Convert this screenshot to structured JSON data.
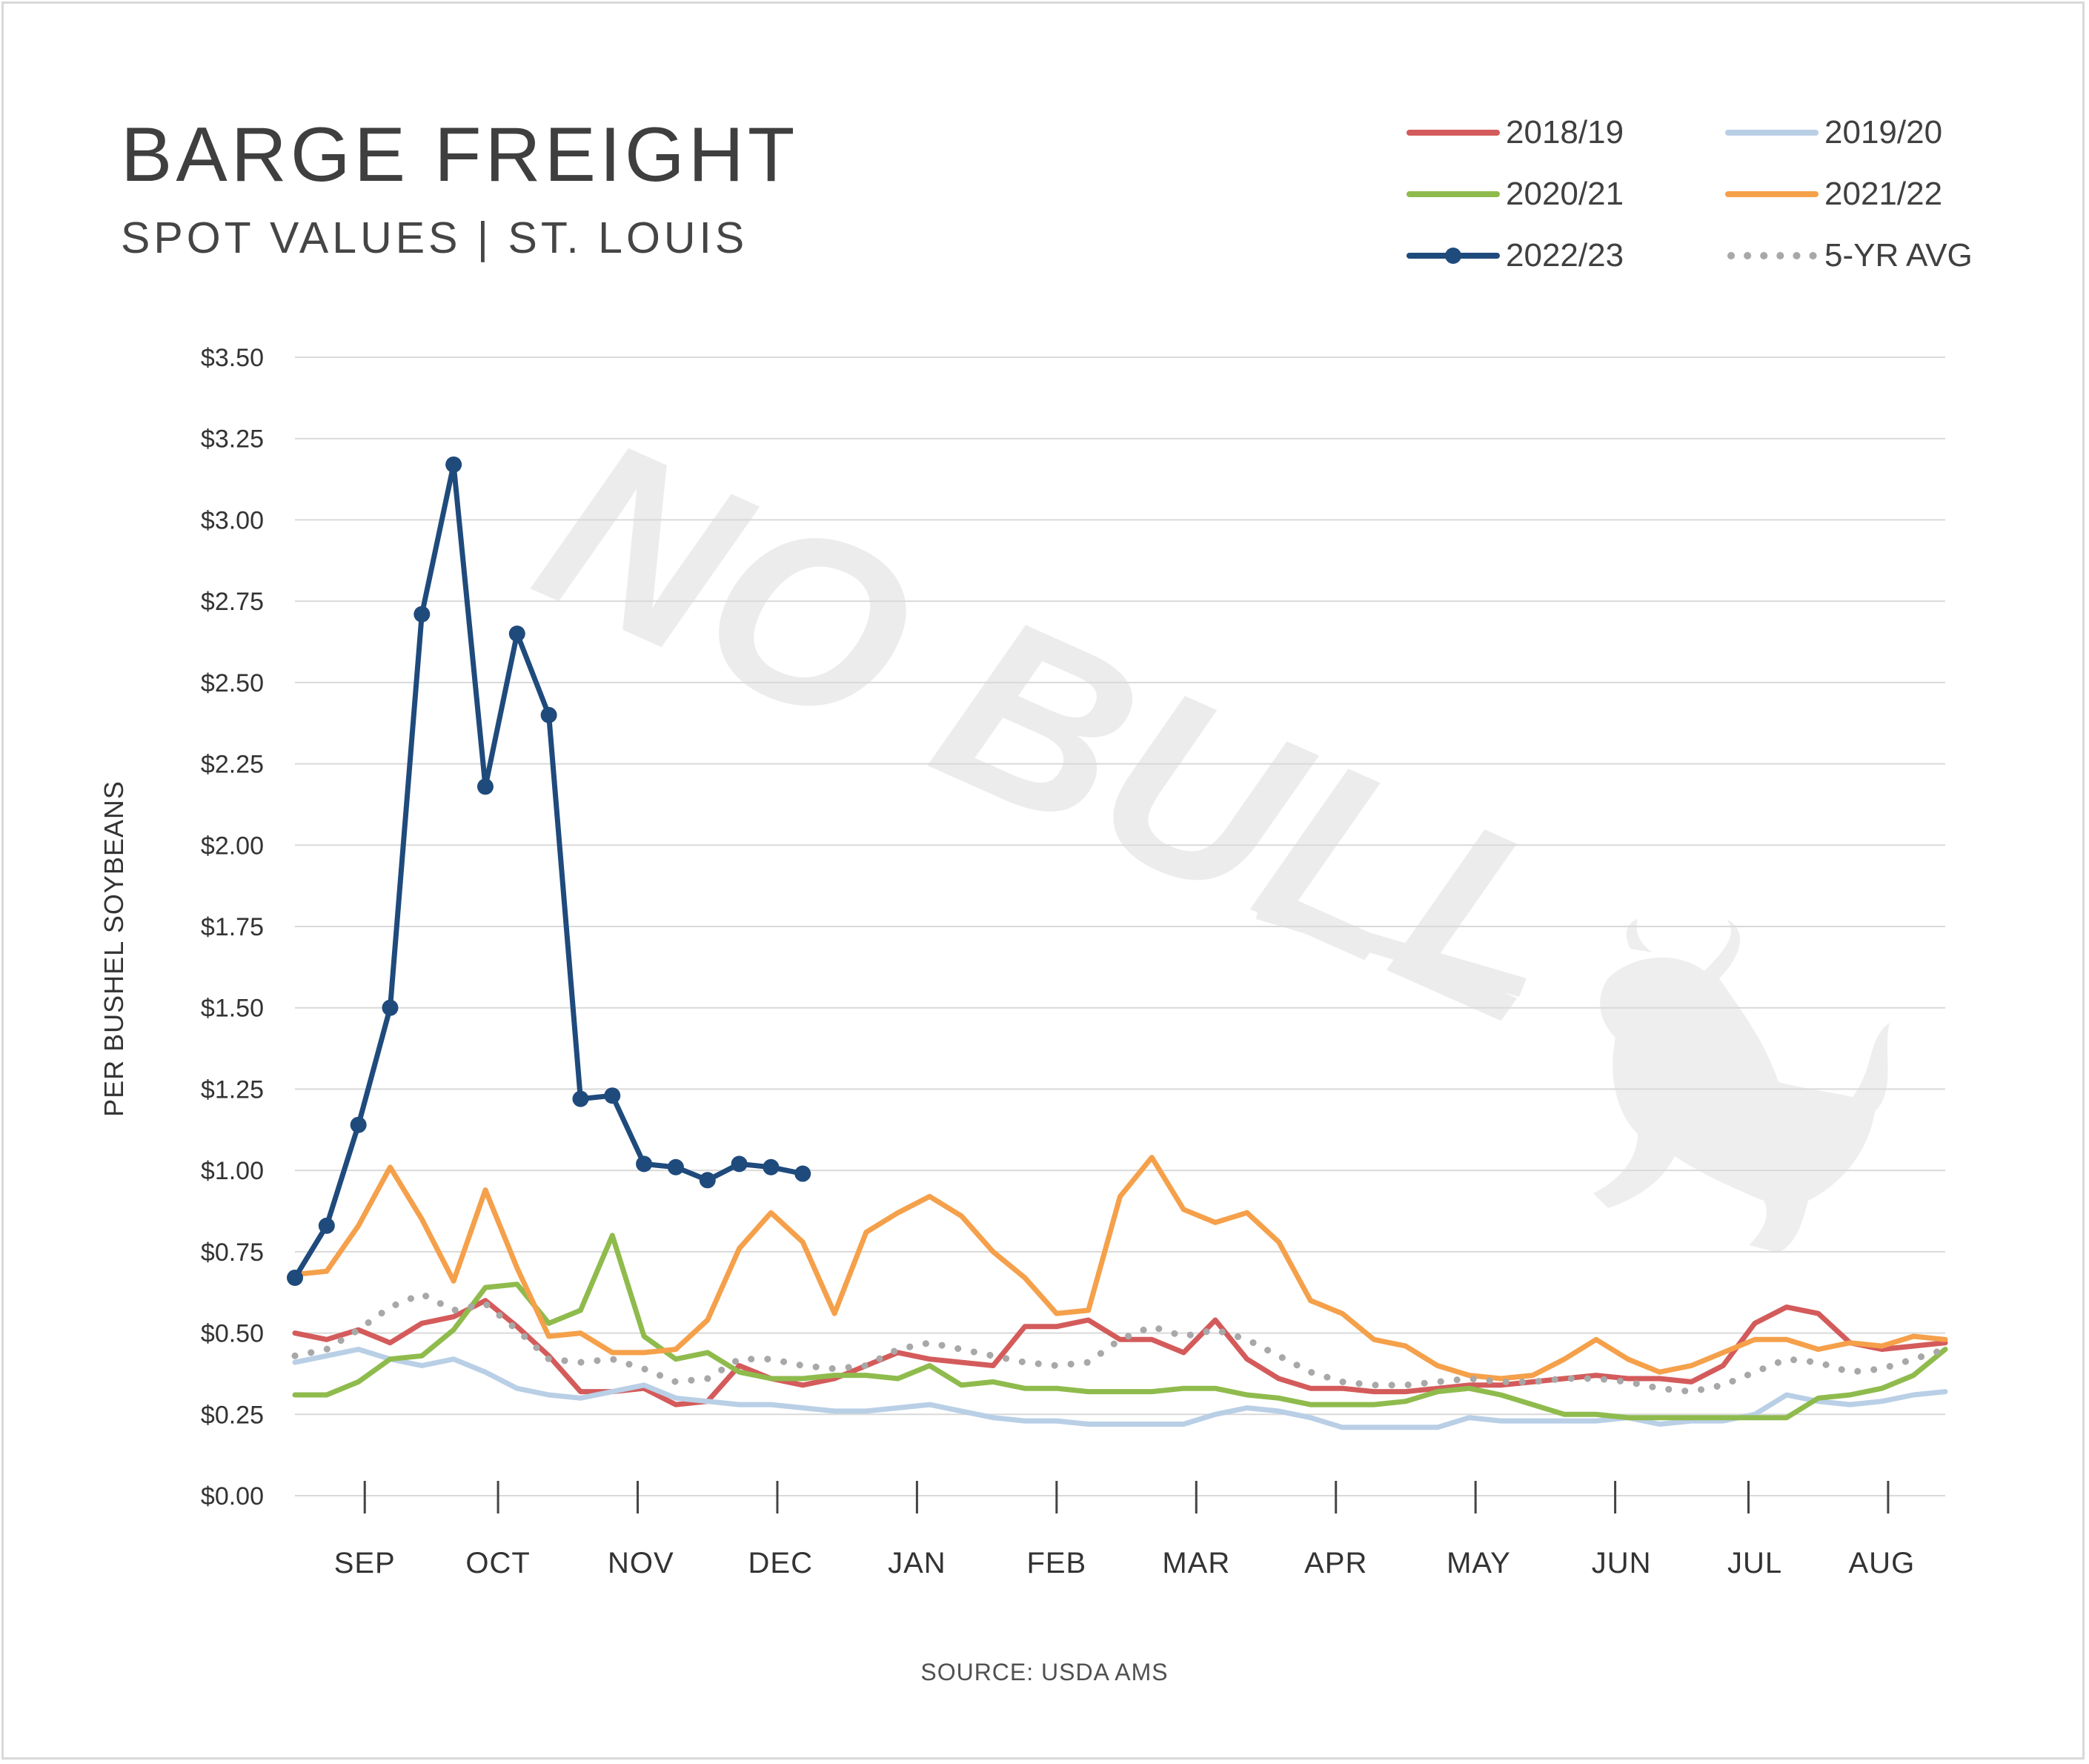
{
  "title": "BARGE FREIGHT",
  "subtitle": "SPOT VALUES | ST. LOUIS",
  "source": "SOURCE: USDA AMS",
  "watermark": {
    "text": "NO BULL",
    "icon": "bull-silhouette-icon"
  },
  "colors": {
    "s2018": "#d45b5b",
    "s2019": "#b9cfe6",
    "s2020": "#8fbb4d",
    "s2021": "#f5a04a",
    "s2022": "#1f4a7c",
    "avg": "#a8a8a8",
    "grid": "#d9d9d9"
  },
  "legend": [
    {
      "label": "2018/19",
      "style": "line",
      "color": "#d45b5b"
    },
    {
      "label": "2019/20",
      "style": "line",
      "color": "#b9cfe6"
    },
    {
      "label": "2020/21",
      "style": "line",
      "color": "#8fbb4d"
    },
    {
      "label": "2021/22",
      "style": "line",
      "color": "#f5a04a"
    },
    {
      "label": "2022/23",
      "style": "line-marker",
      "color": "#1f4a7c"
    },
    {
      "label": "5-YR AVG",
      "style": "dotted",
      "color": "#a8a8a8"
    }
  ],
  "chart_data": {
    "type": "line",
    "title": "BARGE FREIGHT",
    "subtitle": "SPOT VALUES | ST. LOUIS",
    "ylabel": "PER BUSHEL SOYBEANS",
    "xlabel": "",
    "ylim": [
      0,
      3.5
    ],
    "yticks": [
      "$0.00",
      "$0.25",
      "$0.50",
      "$0.75",
      "$1.00",
      "$1.25",
      "$1.50",
      "$1.75",
      "$2.00",
      "$2.25",
      "$2.50",
      "$2.75",
      "$3.00",
      "$3.25",
      "$3.50"
    ],
    "x_unit": "week",
    "xlim": [
      0,
      52
    ],
    "month_labels": [
      "SEP",
      "OCT",
      "NOV",
      "DEC",
      "JAN",
      "FEB",
      "MAR",
      "APR",
      "MAY",
      "JUN",
      "JUL",
      "AUG"
    ],
    "month_label_weeks": [
      2.2,
      6.4,
      10.9,
      15.3,
      19.6,
      24.0,
      28.4,
      32.8,
      37.3,
      41.8,
      46.0,
      50.0
    ],
    "month_tick_weeks": [
      2.2,
      6.4,
      10.8,
      15.2,
      19.6,
      24.0,
      28.4,
      32.8,
      37.2,
      41.6,
      45.8,
      50.2
    ],
    "grid": true,
    "legend_position": "top-right",
    "series": [
      {
        "name": "2018/19",
        "color": "#d45b5b",
        "style": "solid",
        "values": [
          0.5,
          0.48,
          0.51,
          0.47,
          0.53,
          0.55,
          0.6,
          0.52,
          0.43,
          0.32,
          0.32,
          0.33,
          0.28,
          0.29,
          0.4,
          0.36,
          0.34,
          0.36,
          0.4,
          0.44,
          0.42,
          0.41,
          0.4,
          0.52,
          0.52,
          0.54,
          0.48,
          0.48,
          0.44,
          0.54,
          0.42,
          0.36,
          0.33,
          0.33,
          0.32,
          0.32,
          0.33,
          0.34,
          0.34,
          0.35,
          0.36,
          0.37,
          0.36,
          0.36,
          0.35,
          0.4,
          0.53,
          0.58,
          0.56,
          0.47,
          0.45,
          0.46,
          0.47
        ]
      },
      {
        "name": "2019/20",
        "color": "#b9cfe6",
        "style": "solid",
        "values": [
          0.41,
          0.43,
          0.45,
          0.42,
          0.4,
          0.42,
          0.38,
          0.33,
          0.31,
          0.3,
          0.32,
          0.34,
          0.3,
          0.29,
          0.28,
          0.28,
          0.27,
          0.26,
          0.26,
          0.27,
          0.28,
          0.26,
          0.24,
          0.23,
          0.23,
          0.22,
          0.22,
          0.22,
          0.22,
          0.25,
          0.27,
          0.26,
          0.24,
          0.21,
          0.21,
          0.21,
          0.21,
          0.24,
          0.23,
          0.23,
          0.23,
          0.23,
          0.24,
          0.22,
          0.23,
          0.23,
          0.25,
          0.31,
          0.29,
          0.28,
          0.29,
          0.31,
          0.32
        ]
      },
      {
        "name": "2020/21",
        "color": "#8fbb4d",
        "style": "solid",
        "values": [
          0.31,
          0.31,
          0.35,
          0.42,
          0.43,
          0.51,
          0.64,
          0.65,
          0.53,
          0.57,
          0.8,
          0.49,
          0.42,
          0.44,
          0.38,
          0.36,
          0.36,
          0.37,
          0.37,
          0.36,
          0.4,
          0.34,
          0.35,
          0.33,
          0.33,
          0.32,
          0.32,
          0.32,
          0.33,
          0.33,
          0.31,
          0.3,
          0.28,
          0.28,
          0.28,
          0.29,
          0.32,
          0.33,
          0.31,
          0.28,
          0.25,
          0.25,
          0.24,
          0.24,
          0.24,
          0.24,
          0.24,
          0.24,
          0.3,
          0.31,
          0.33,
          0.37,
          0.45
        ]
      },
      {
        "name": "2021/22",
        "color": "#f5a04a",
        "style": "solid",
        "values": [
          0.68,
          0.69,
          0.83,
          1.01,
          0.85,
          0.66,
          0.94,
          0.7,
          0.49,
          0.5,
          0.44,
          0.44,
          0.45,
          0.54,
          0.76,
          0.87,
          0.78,
          0.56,
          0.81,
          0.87,
          0.92,
          0.86,
          0.75,
          0.67,
          0.56,
          0.57,
          0.92,
          1.04,
          0.88,
          0.84,
          0.87,
          0.78,
          0.6,
          0.56,
          0.48,
          0.46,
          0.4,
          0.37,
          0.36,
          0.37,
          0.42,
          0.48,
          0.42,
          0.38,
          0.4,
          0.44,
          0.48,
          0.48,
          0.45,
          0.47,
          0.46,
          0.49,
          0.48
        ]
      },
      {
        "name": "2022/23",
        "color": "#1f4a7c",
        "style": "solid-marker",
        "values": [
          0.67,
          0.83,
          1.14,
          1.5,
          2.71,
          3.17,
          2.18,
          2.65,
          2.4,
          1.22,
          1.23,
          1.02,
          1.01,
          0.97,
          1.02,
          1.01,
          0.99
        ]
      },
      {
        "name": "5-YR AVG",
        "color": "#a8a8a8",
        "style": "dotted",
        "values": [
          0.43,
          0.45,
          0.51,
          0.58,
          0.62,
          0.57,
          0.59,
          0.51,
          0.42,
          0.41,
          0.42,
          0.39,
          0.35,
          0.36,
          0.42,
          0.42,
          0.4,
          0.39,
          0.4,
          0.45,
          0.47,
          0.45,
          0.43,
          0.41,
          0.4,
          0.41,
          0.48,
          0.52,
          0.49,
          0.51,
          0.48,
          0.43,
          0.38,
          0.35,
          0.34,
          0.34,
          0.35,
          0.36,
          0.35,
          0.35,
          0.36,
          0.36,
          0.35,
          0.33,
          0.32,
          0.34,
          0.38,
          0.42,
          0.41,
          0.38,
          0.39,
          0.42,
          0.45
        ]
      }
    ]
  }
}
